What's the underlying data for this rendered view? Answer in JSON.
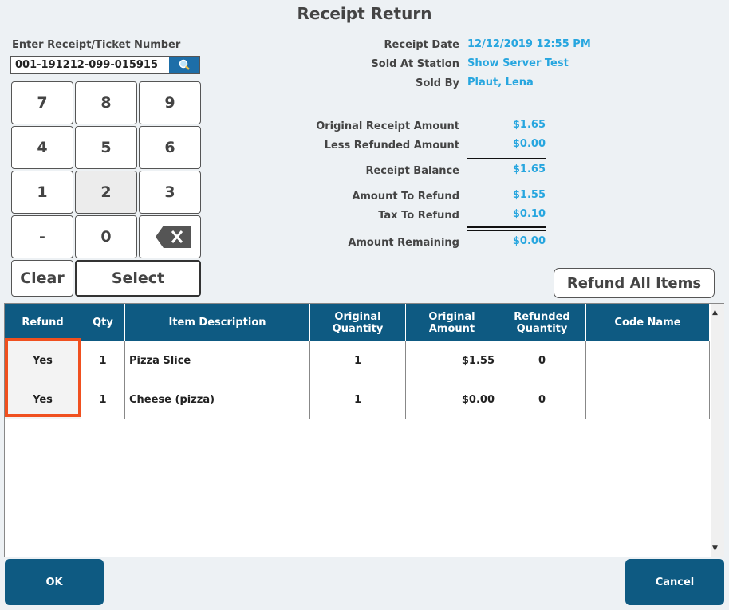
{
  "title": "Receipt Return",
  "receipt_input": {
    "label": "Enter Receipt/Ticket Number",
    "value": "001-191212-099-015915"
  },
  "keypad": [
    "7",
    "8",
    "9",
    "4",
    "5",
    "6",
    "1",
    "2",
    "3",
    "-",
    "0"
  ],
  "buttons": {
    "clear": "Clear",
    "select": "Select",
    "refund_all": "Refund All Items",
    "ok": "OK",
    "cancel": "Cancel"
  },
  "info": [
    {
      "label": "Receipt Date",
      "value": "12/12/2019 12:55 PM"
    },
    {
      "label": "Sold At Station",
      "value": "Show Server Test"
    },
    {
      "label": "Sold By",
      "value": "Plaut, Lena"
    }
  ],
  "amounts": [
    {
      "label": "Original Receipt Amount",
      "value": "$1.65"
    },
    {
      "label": "Less Refunded Amount",
      "value": "$0.00"
    },
    {
      "label": "Receipt Balance",
      "value": "$1.65"
    },
    {
      "label": "Amount To Refund",
      "value": "$1.55"
    },
    {
      "label": "Tax To Refund",
      "value": "$0.10"
    },
    {
      "label": "Amount Remaining",
      "value": "$0.00"
    }
  ],
  "table": {
    "headers": [
      "Refund",
      "Qty",
      "Item Description",
      "Original Quantity",
      "Original Amount",
      "Refunded Quantity",
      "Code Name"
    ],
    "rows": [
      [
        "Yes",
        "1",
        "Pizza Slice",
        "1",
        "$1.55",
        "0",
        ""
      ],
      [
        "Yes",
        "1",
        "Cheese (pizza)",
        "1",
        "$0.00",
        "0",
        ""
      ]
    ]
  }
}
